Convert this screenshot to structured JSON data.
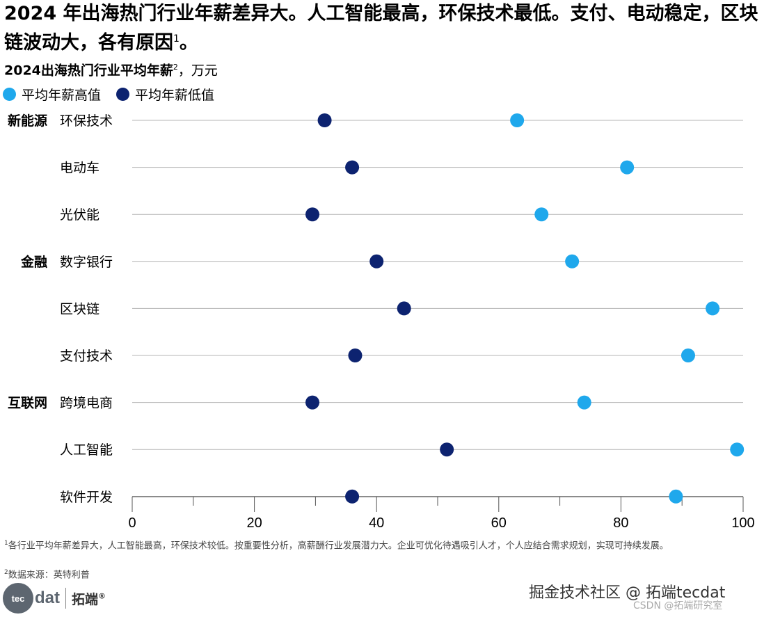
{
  "title": {
    "text": "2024 年出海热门行业年薪差异大。人工智能最高，环保技术最低。支付、电动稳定，区块链波动大，各有原因",
    "sup": "1",
    "end": "。"
  },
  "subtitle": {
    "bold": "2024出海热门行业平均年薪",
    "sup": "2",
    "unit": "，万元"
  },
  "legend": {
    "high_label": "平均年薪高值",
    "low_label": "平均年薪低值"
  },
  "colors": {
    "high": "#1fa8ec",
    "low": "#0d2370",
    "grid": "#b4b4b4"
  },
  "chart_data": {
    "type": "dot-plot",
    "title": "2024出海热门行业平均年薪，万元",
    "xlim": [
      0,
      100
    ],
    "xticks": [
      0,
      20,
      40,
      60,
      80,
      100
    ],
    "groups": [
      {
        "name": "新能源",
        "categories": [
          "环保技术",
          "电动车",
          "光伏能"
        ]
      },
      {
        "name": "金融",
        "categories": [
          "数字银行",
          "区块链",
          "支付技术"
        ]
      },
      {
        "name": "互联网",
        "categories": [
          "跨境电商",
          "人工智能",
          "软件开发"
        ]
      }
    ],
    "categories": [
      "环保技术",
      "电动车",
      "光伏能",
      "数字银行",
      "区块链",
      "支付技术",
      "跨境电商",
      "人工智能",
      "软件开发"
    ],
    "series": [
      {
        "name": "平均年薪高值",
        "values": [
          63,
          81,
          67,
          72,
          95,
          91,
          74,
          99,
          89
        ]
      },
      {
        "name": "平均年薪低值",
        "values": [
          31.5,
          36,
          29.5,
          40,
          44.5,
          36.5,
          29.5,
          51.5,
          36
        ]
      }
    ]
  },
  "footnotes": {
    "fn1_sup": "1",
    "fn1": "各行业平均年薪差异大，人工智能最高，环保技术较低。按重要性分析，高薪酬行业发展潜力大。企业可优化待遇吸引人才，个人应结合需求规划，实现可持续发展。",
    "fn2_sup": "2",
    "fn2": "数据来源：英特利普"
  },
  "logo": {
    "circle": "tec",
    "word": "dat",
    "cn": "拓端",
    "reg": "®"
  },
  "watermarks": {
    "main": "掘金技术社区 @ 拓端tecdat",
    "sub": "CSDN @拓端研究室"
  }
}
